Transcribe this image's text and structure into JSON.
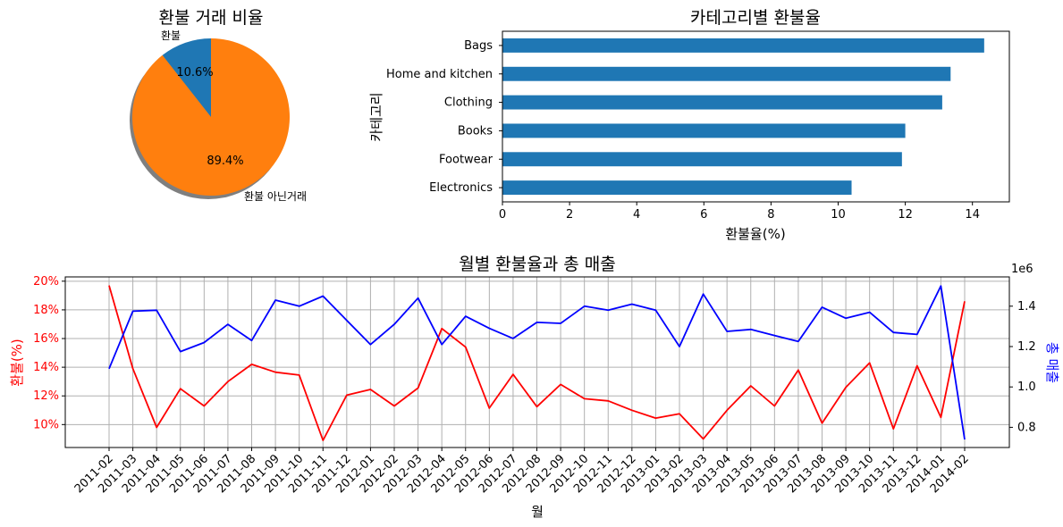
{
  "chart_data": [
    {
      "type": "pie",
      "title": "환불 거래 비율",
      "labels": [
        "환불",
        "환불 아닌거래"
      ],
      "values": [
        10.6,
        89.4
      ],
      "pct_labels": [
        "10.6%",
        "89.4%"
      ],
      "colors": [
        "#1f77b4",
        "#ff7f0e"
      ],
      "shadow": true
    },
    {
      "type": "bar",
      "orientation": "horizontal",
      "title": "카테고리별 환불율",
      "xlabel": "환불율(%)",
      "ylabel": "카테고리",
      "categories": [
        "Bags",
        "Home and kitchen",
        "Clothing",
        "Books",
        "Footwear",
        "Electronics"
      ],
      "values": [
        14.35,
        13.35,
        13.1,
        12.0,
        11.9,
        10.4
      ],
      "xlim": [
        0,
        15.1
      ],
      "xticks": [
        "0",
        "2",
        "4",
        "6",
        "8",
        "10",
        "12",
        "14"
      ],
      "color": "#1f77b4"
    },
    {
      "type": "line",
      "title": "월별 환불율과 총 매출",
      "xlabel": "월",
      "ylabel_left": "환불(%)",
      "ylabel_right": "총 매출",
      "right_multiplier": "1e6",
      "x": [
        "2011-02",
        "2011-03",
        "2011-04",
        "2011-05",
        "2011-06",
        "2011-07",
        "2011-08",
        "2011-09",
        "2011-10",
        "2011-11",
        "2011-12",
        "2012-01",
        "2012-02",
        "2012-03",
        "2012-04",
        "2012-05",
        "2012-06",
        "2012-07",
        "2012-08",
        "2012-09",
        "2012-10",
        "2012-11",
        "2012-12",
        "2013-01",
        "2013-02",
        "2013-03",
        "2013-04",
        "2013-05",
        "2013-06",
        "2013-07",
        "2013-08",
        "2013-09",
        "2013-10",
        "2013-11",
        "2013-12",
        "2014-01",
        "2014-02"
      ],
      "series": [
        {
          "axis": "left",
          "color": "#ff0000",
          "values": [
            19.7,
            13.9,
            9.8,
            12.5,
            11.3,
            13.0,
            14.2,
            13.65,
            13.45,
            8.9,
            12.05,
            12.45,
            11.3,
            12.55,
            16.7,
            15.4,
            11.15,
            13.5,
            11.25,
            12.8,
            11.8,
            11.65,
            11.0,
            10.45,
            10.75,
            9.0,
            11.0,
            12.7,
            11.3,
            13.8,
            10.1,
            12.6,
            14.3,
            9.7,
            14.1,
            10.5,
            18.6
          ]
        },
        {
          "axis": "right",
          "color": "#0000ff",
          "values": [
            1.09,
            1.375,
            1.38,
            1.175,
            1.22,
            1.31,
            1.23,
            1.43,
            1.4,
            1.45,
            1.33,
            1.21,
            1.31,
            1.44,
            1.21,
            1.35,
            1.29,
            1.24,
            1.32,
            1.315,
            1.4,
            1.38,
            1.41,
            1.38,
            1.2,
            1.46,
            1.275,
            1.285,
            1.255,
            1.225,
            1.395,
            1.34,
            1.37,
            1.27,
            1.26,
            1.5,
            0.74
          ]
        }
      ],
      "ylim_left": [
        8.4,
        20.3
      ],
      "yticks_left": [
        "10%",
        "12%",
        "14%",
        "16%",
        "18%",
        "20%"
      ],
      "ylim_right": [
        0.7,
        1.545
      ],
      "yticks_right": [
        "0.8",
        "1.0",
        "1.2",
        "1.4"
      ],
      "grid": true
    }
  ]
}
